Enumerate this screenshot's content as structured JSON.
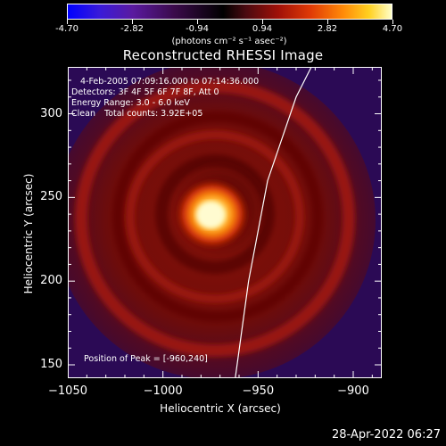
{
  "colorbar": {
    "ticks": [
      "-4.70",
      "-2.82",
      "-0.94",
      "0.94",
      "2.82",
      "4.70"
    ],
    "units": "(photons cm⁻² s⁻¹ asec⁻²)",
    "min": -4.7,
    "max": 4.7
  },
  "chart_data": {
    "type": "heatmap",
    "title": "Reconstructed RHESSI Image",
    "xlabel": "Heliocentric X (arcsec)",
    "ylabel": "Heliocentric Y (arcsec)",
    "xlim": [
      -1050,
      -885
    ],
    "ylim": [
      142,
      328
    ],
    "xticks": [
      -1050,
      -1000,
      -950,
      -900
    ],
    "xtick_labels": [
      "−1050",
      "−1000",
      "−950",
      "−900"
    ],
    "yticks": [
      150,
      200,
      250,
      300
    ],
    "ytick_labels": [
      "150",
      "200",
      "250",
      "300"
    ],
    "peak_position": [
      -960,
      240
    ],
    "annotations": {
      "time": "4-Feb-2005 07:09:16.000 to 07:14:36.000",
      "detectors": "Detectors: 3F 4F 5F 6F 7F 8F, Att 0",
      "energy": "Energy Range: 3.0 - 6.0 keV",
      "clean": "Clean",
      "counts": "Total counts: 3.92E+05",
      "peak": "Position of Peak = [-960,240]"
    },
    "limb_curve": [
      [
        -962,
        142
      ],
      [
        -955,
        200
      ],
      [
        -945,
        260
      ],
      [
        -930,
        310
      ],
      [
        -922,
        328
      ]
    ]
  },
  "footer": {
    "timestamp": "28-Apr-2022 06:27"
  },
  "colors": {
    "background": "#000000",
    "foreground": "#ffffff"
  }
}
